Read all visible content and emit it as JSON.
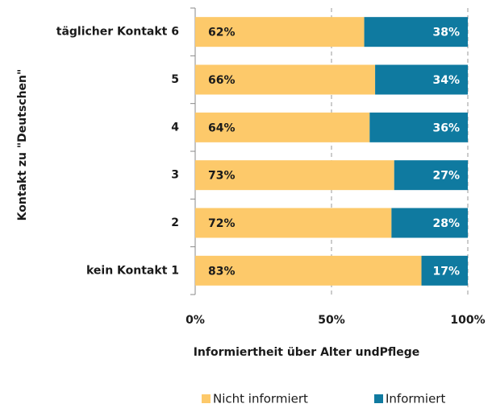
{
  "chart_data": {
    "type": "bar",
    "orientation": "horizontal",
    "stacked": true,
    "xlabel": "Informiertheit über Alter undPflege",
    "ylabel": "Kontakt zu \"Deutschen\"",
    "categories": [
      "täglicher Kontakt 6",
      "5",
      "4",
      "3",
      "2",
      "kein Kontakt 1"
    ],
    "series": [
      {
        "name": "Nicht informiert",
        "color": "#fdc96a",
        "values": [
          62,
          66,
          64,
          73,
          72,
          83
        ],
        "value_labels": [
          "62%",
          "66%",
          "64%",
          "73%",
          "72%",
          "83%"
        ]
      },
      {
        "name": "Informiert",
        "color": "#0f7aa0",
        "values": [
          38,
          34,
          36,
          27,
          28,
          17
        ],
        "value_labels": [
          "38%",
          "34%",
          "36%",
          "27%",
          "28%",
          "17%"
        ]
      }
    ],
    "xlim": [
      0,
      100
    ],
    "xticks": [
      {
        "value": 0,
        "label": "0%"
      },
      {
        "value": 50,
        "label": "50%"
      },
      {
        "value": 100,
        "label": "100%"
      }
    ],
    "grid": true,
    "legend": "bottom"
  }
}
